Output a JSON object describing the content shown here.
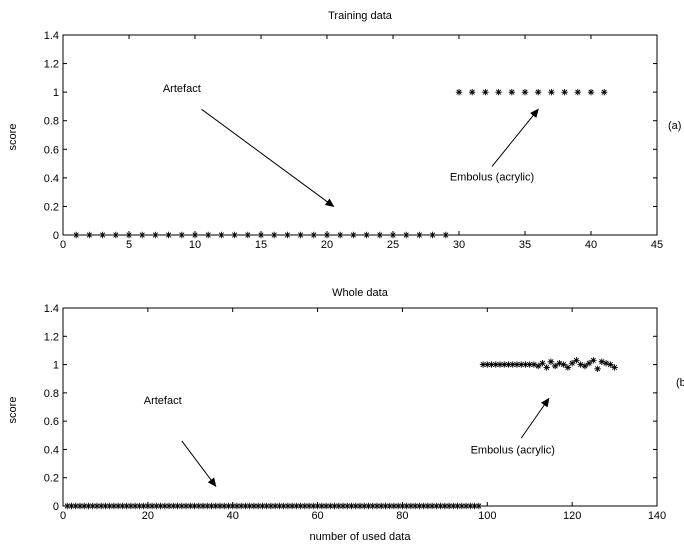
{
  "chart_data": [
    {
      "type": "scatter",
      "title": "Training data",
      "xlabel": "",
      "ylabel": "score",
      "xlim": [
        0,
        45
      ],
      "ylim": [
        0,
        1.4
      ],
      "xticks": [
        0,
        5,
        10,
        15,
        20,
        25,
        30,
        35,
        40,
        45
      ],
      "yticks": [
        0,
        0.2,
        0.4,
        0.6,
        0.8,
        1,
        1.2,
        1.4
      ],
      "xtick_labels": [
        "0",
        "5",
        "10",
        "15",
        "20",
        "25",
        "30",
        "35",
        "40",
        "45"
      ],
      "ytick_labels": [
        "0",
        "0.2",
        "0.4",
        "0.6",
        "0.8",
        "1",
        "1.2",
        "1.4"
      ],
      "grid": false,
      "marker": "*",
      "series": [
        {
          "x": [
            1,
            2,
            3,
            4,
            5,
            6,
            7,
            8,
            9,
            10,
            11,
            12,
            13,
            14,
            15,
            16,
            17,
            18,
            19,
            20,
            21,
            22,
            23,
            24,
            25,
            26,
            27,
            28,
            29,
            30,
            31,
            32,
            33,
            34,
            35,
            36,
            37,
            38,
            39,
            40,
            41
          ],
          "y": [
            0,
            0,
            0,
            0,
            0,
            0,
            0,
            0,
            0,
            0,
            0,
            0,
            0,
            0,
            0,
            0,
            0,
            0,
            0,
            0,
            0,
            0,
            0,
            0,
            0,
            0,
            0,
            0,
            0,
            1,
            1,
            1,
            1,
            1,
            1,
            1,
            1,
            1,
            1,
            1,
            1
          ]
        }
      ],
      "annotations": [
        {
          "text": "Artefact",
          "x": 9,
          "y": 1.0,
          "arrow_from": [
            10.5,
            0.88
          ],
          "arrow_to": [
            20.5,
            0.2
          ]
        },
        {
          "text": "Embolus (acrylic)",
          "x": 32.5,
          "y": 0.38,
          "arrow_from": [
            32.5,
            0.48
          ],
          "arrow_to": [
            36,
            0.88
          ]
        }
      ],
      "side_label": "(a)"
    },
    {
      "type": "scatter",
      "title": "Whole data",
      "xlabel": "number of used data",
      "ylabel": "score",
      "xlim": [
        0,
        140
      ],
      "ylim": [
        0,
        1.4
      ],
      "xticks": [
        0,
        20,
        40,
        60,
        80,
        100,
        120,
        140
      ],
      "yticks": [
        0,
        0.2,
        0.4,
        0.6,
        0.8,
        1,
        1.2,
        1.4
      ],
      "xtick_labels": [
        "0",
        "20",
        "40",
        "60",
        "80",
        "100",
        "120",
        "140"
      ],
      "ytick_labels": [
        "0",
        "0.2",
        "0.4",
        "0.6",
        "0.8",
        "1",
        "1.2",
        "1.4"
      ],
      "grid": false,
      "marker": "*",
      "series": [
        {
          "x": [
            1,
            2,
            3,
            4,
            5,
            6,
            7,
            8,
            9,
            10,
            11,
            12,
            13,
            14,
            15,
            16,
            17,
            18,
            19,
            20,
            21,
            22,
            23,
            24,
            25,
            26,
            27,
            28,
            29,
            30,
            31,
            32,
            33,
            34,
            35,
            36,
            37,
            38,
            39,
            40,
            41,
            42,
            43,
            44,
            45,
            46,
            47,
            48,
            49,
            50,
            51,
            52,
            53,
            54,
            55,
            56,
            57,
            58,
            59,
            60,
            61,
            62,
            63,
            64,
            65,
            66,
            67,
            68,
            69,
            70,
            71,
            72,
            73,
            74,
            75,
            76,
            77,
            78,
            79,
            80,
            81,
            82,
            83,
            84,
            85,
            86,
            87,
            88,
            89,
            90,
            91,
            92,
            93,
            94,
            95,
            96,
            97,
            98,
            99,
            100,
            101,
            102,
            103,
            104,
            105,
            106,
            107,
            108,
            109,
            110,
            111,
            112,
            113,
            114,
            115,
            116,
            117,
            118,
            119,
            120,
            121,
            122,
            123,
            124,
            125,
            126,
            127,
            128,
            129,
            130
          ],
          "y": [
            0,
            0,
            0,
            0,
            0,
            0,
            0,
            0,
            0,
            0,
            0,
            0,
            0,
            0,
            0,
            0,
            0,
            0,
            0,
            0,
            0,
            0,
            0,
            0,
            0,
            0,
            0,
            0,
            0,
            0,
            0,
            0,
            0,
            0,
            0,
            0,
            0,
            0,
            0,
            0,
            0,
            0,
            0,
            0,
            0,
            0,
            0,
            0,
            0,
            0,
            0,
            0,
            0,
            0,
            0,
            0,
            0,
            0,
            0,
            0,
            0,
            0,
            0,
            0,
            0,
            0,
            0,
            0,
            0,
            0,
            0,
            0,
            0,
            0,
            0,
            0,
            0,
            0,
            0,
            0,
            0,
            0,
            0,
            0,
            0,
            0,
            0,
            0,
            0,
            0,
            0,
            0,
            0,
            0,
            0,
            0,
            0,
            0,
            1,
            1,
            1,
            1,
            1,
            1,
            1,
            1,
            1,
            1,
            1,
            1,
            1,
            0.99,
            1.01,
            0.98,
            1.02,
            0.99,
            1.01,
            1.0,
            0.98,
            1.01,
            1.03,
            1.0,
            0.99,
            1.01,
            1.03,
            0.97,
            1.02,
            1.01,
            1.0,
            0.98
          ]
        }
      ],
      "annotations": [
        {
          "text": "Artefact",
          "x": 23.5,
          "y": 0.72,
          "arrow_from": [
            28,
            0.46
          ],
          "arrow_to": [
            36,
            0.14
          ]
        },
        {
          "text": "Embolus (acrylic)",
          "x": 106,
          "y": 0.37,
          "arrow_from": [
            108,
            0.48
          ],
          "arrow_to": [
            114.5,
            0.76
          ]
        }
      ],
      "side_label": "(b"
    }
  ]
}
